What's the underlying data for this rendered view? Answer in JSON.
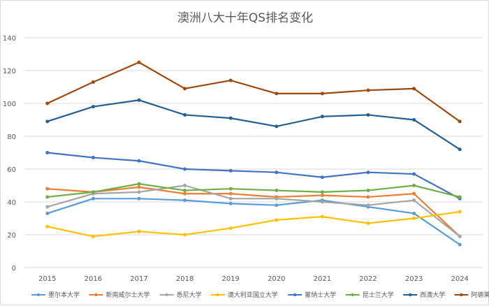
{
  "chart_data": {
    "type": "line",
    "title": "澳洲八大十年QS排名变化",
    "xlabel": "",
    "ylabel": "",
    "categories": [
      "2015",
      "2016",
      "2017",
      "2018",
      "2019",
      "2020",
      "2021",
      "2022",
      "2023",
      "2024"
    ],
    "ylim": [
      0,
      140
    ],
    "yticks": [
      0,
      20,
      40,
      60,
      80,
      100,
      120,
      140
    ],
    "grid": true,
    "legend_position": "bottom",
    "series": [
      {
        "name": "墨尔本大学",
        "color": "#5b9bd5",
        "values": [
          33,
          42,
          42,
          41,
          39,
          38,
          41,
          37,
          33,
          14
        ]
      },
      {
        "name": "新南威尔士大学",
        "color": "#ed7d31",
        "values": [
          48,
          46,
          49,
          45,
          45,
          43,
          44,
          43,
          45,
          19
        ]
      },
      {
        "name": "悉尼大学",
        "color": "#a5a5a5",
        "values": [
          37,
          45,
          46,
          50,
          42,
          42,
          40,
          38,
          41,
          19
        ]
      },
      {
        "name": "澳大利亚国立大学",
        "color": "#ffc000",
        "values": [
          25,
          19,
          22,
          20,
          24,
          29,
          31,
          27,
          30,
          34
        ]
      },
      {
        "name": "蒙纳士大学",
        "color": "#4472c4",
        "values": [
          70,
          67,
          65,
          60,
          59,
          58,
          55,
          58,
          57,
          42
        ]
      },
      {
        "name": "昆士兰大学",
        "color": "#70ad47",
        "values": [
          43,
          46,
          51,
          47,
          48,
          47,
          46,
          47,
          50,
          43
        ]
      },
      {
        "name": "西澳大学",
        "color": "#255e91",
        "values": [
          89,
          98,
          102,
          93,
          91,
          86,
          92,
          93,
          90,
          72
        ]
      },
      {
        "name": "阿德莱德大学",
        "color": "#9e480e",
        "values": [
          100,
          113,
          125,
          109,
          114,
          106,
          106,
          108,
          109,
          89
        ]
      }
    ]
  }
}
